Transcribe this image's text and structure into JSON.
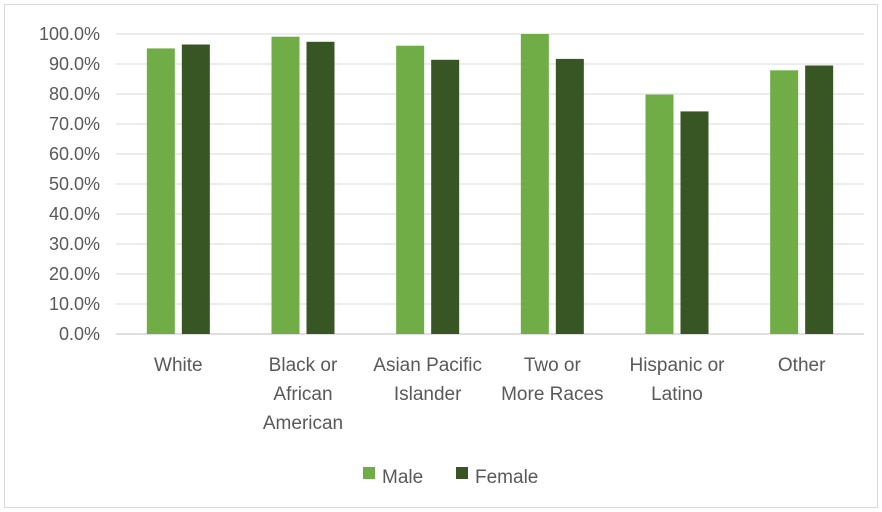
{
  "chart_data": {
    "type": "bar",
    "categories": [
      [
        "White"
      ],
      [
        "Black or",
        "African",
        "American"
      ],
      [
        "Asian Pacific",
        "Islander"
      ],
      [
        "Two or",
        "More Races"
      ],
      [
        "Hispanic or",
        "Latino"
      ],
      [
        "Other"
      ]
    ],
    "series": [
      {
        "name": "Male",
        "color": "#70ad47",
        "values": [
          95.2,
          99.1,
          96.1,
          100.0,
          79.8,
          87.9
        ]
      },
      {
        "name": "Female",
        "color": "#375623",
        "values": [
          96.5,
          97.4,
          91.4,
          91.7,
          74.2,
          89.5
        ]
      }
    ],
    "ylim": [
      0,
      100
    ],
    "yticks": [
      "0.0%",
      "10.0%",
      "20.0%",
      "30.0%",
      "40.0%",
      "50.0%",
      "60.0%",
      "70.0%",
      "80.0%",
      "90.0%",
      "100.0%"
    ],
    "grid": true,
    "legend_placement": "bottom"
  }
}
